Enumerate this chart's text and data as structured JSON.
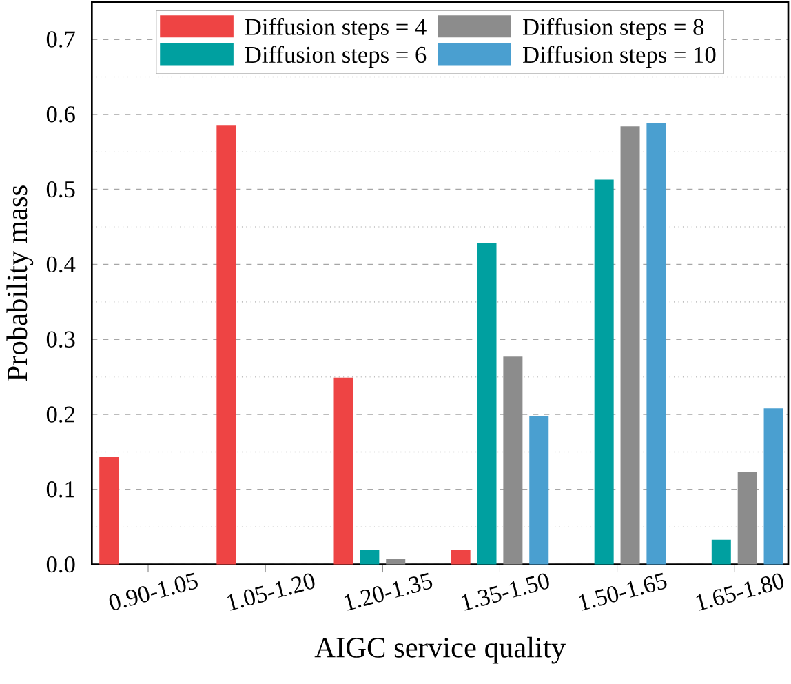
{
  "chart_data": {
    "type": "bar",
    "xlabel": "AIGC service quality",
    "ylabel": "Probability mass",
    "categories": [
      "0.90-1.05",
      "1.05-1.20",
      "1.20-1.35",
      "1.35-1.50",
      "1.50-1.65",
      "1.65-1.80"
    ],
    "series": [
      {
        "name": "Diffusion steps = 4",
        "color": "#ee4444",
        "values": [
          0.143,
          0.585,
          0.249,
          0.019,
          0,
          0
        ]
      },
      {
        "name": "Diffusion steps = 6",
        "color": "#00a0a0",
        "values": [
          0,
          0,
          0.019,
          0.428,
          0.513,
          0.033
        ]
      },
      {
        "name": "Diffusion steps = 8",
        "color": "#8c8c8c",
        "values": [
          0,
          0,
          0.007,
          0.277,
          0.584,
          0.123
        ]
      },
      {
        "name": "Diffusion steps = 10",
        "color": "#4a9fd0",
        "values": [
          0,
          0,
          0,
          0.198,
          0.588,
          0.208
        ]
      }
    ],
    "ylim": [
      0,
      0.75
    ],
    "yticks": [
      {
        "value": 0,
        "label": "0.0"
      },
      {
        "value": 0.1,
        "label": "0.1"
      },
      {
        "value": 0.2,
        "label": "0.2"
      },
      {
        "value": 0.3,
        "label": "0.3"
      },
      {
        "value": 0.4,
        "label": "0.4"
      },
      {
        "value": 0.5,
        "label": "0.5"
      },
      {
        "value": 0.6,
        "label": "0.6"
      },
      {
        "value": 0.7,
        "label": "0.7"
      }
    ],
    "grid": "y",
    "legend": "top"
  }
}
